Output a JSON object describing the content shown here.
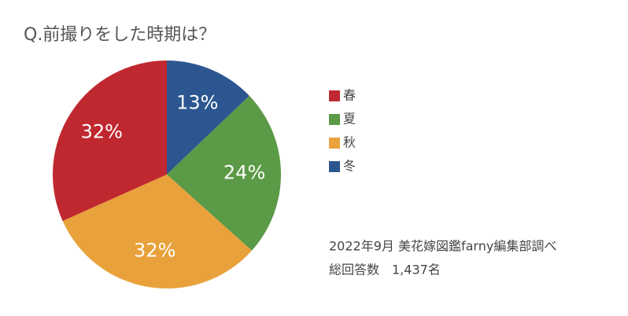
{
  "chart_data": {
    "type": "pie",
    "title": "Q.前撮りをした時期は？",
    "categories": [
      "春",
      "夏",
      "秋",
      "冬"
    ],
    "values": [
      32,
      24,
      32,
      13
    ],
    "value_labels": [
      "32%",
      "24%",
      "32%",
      "13%"
    ],
    "colors": [
      "#c0282f",
      "#5b9a46",
      "#e9a23b",
      "#2c5690"
    ],
    "notes": [
      "2022年9月 美花嫁図鑑farny編集部調べ",
      "総回答数　1,437名"
    ]
  }
}
